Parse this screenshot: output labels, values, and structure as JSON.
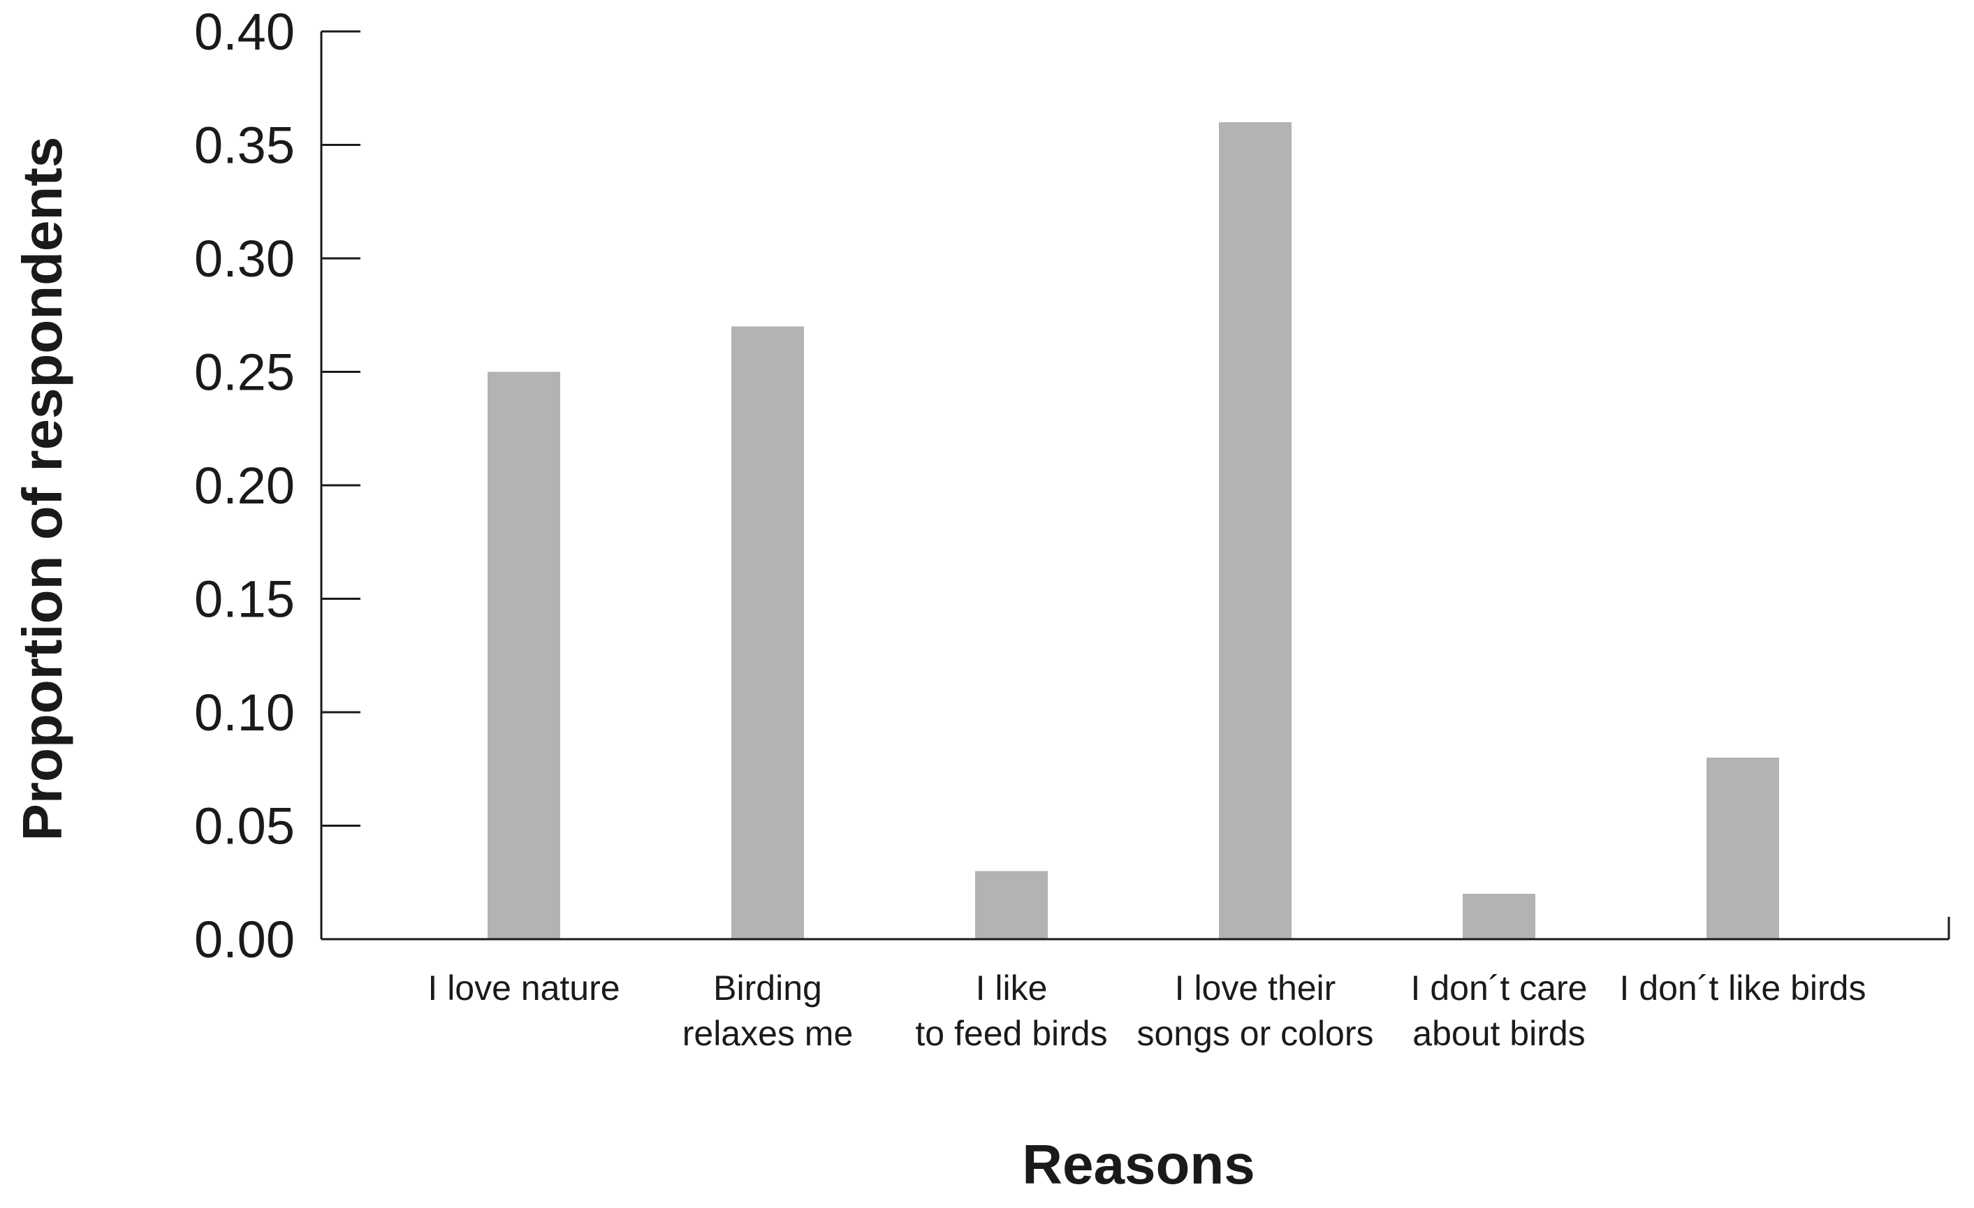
{
  "chart_data": {
    "type": "bar",
    "title": "",
    "xlabel": "Reasons",
    "ylabel": "Proportion of respondents",
    "categories": [
      [
        "I love nature"
      ],
      [
        "Birding",
        "relaxes me"
      ],
      [
        "I like",
        "to feed birds"
      ],
      [
        "I love their",
        "songs or colors"
      ],
      [
        "I don´t care",
        "about birds"
      ],
      [
        "I don´t like birds"
      ]
    ],
    "values": [
      0.25,
      0.27,
      0.03,
      0.36,
      0.02,
      0.08
    ],
    "ylim": [
      0,
      0.4
    ],
    "yticks": [
      "0.00",
      "0.05",
      "0.10",
      "0.15",
      "0.20",
      "0.25",
      "0.30",
      "0.35",
      "0.40"
    ],
    "bar_color": "#b3b3b3",
    "grid": false,
    "legend": "none"
  }
}
